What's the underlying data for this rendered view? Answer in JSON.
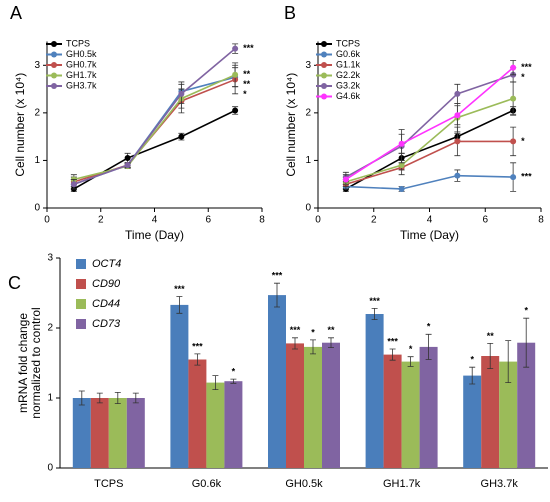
{
  "chart_data": [
    {
      "type": "line",
      "title": "A",
      "xlabel": "Time (Day)",
      "ylabel": "Cell number (x 10⁴)",
      "x": [
        1,
        3,
        5,
        7
      ],
      "xlim": [
        0,
        8
      ],
      "xticks": [
        0,
        2,
        4,
        6,
        8
      ],
      "ylim": [
        0,
        3.5
      ],
      "yticks": [
        0,
        1,
        2,
        3
      ],
      "series": [
        {
          "name": "TCPS",
          "color": "#000000",
          "values": [
            0.4,
            1.05,
            1.5,
            2.05
          ],
          "errors": [
            0.05,
            0.1,
            0.07,
            0.08
          ]
        },
        {
          "name": "GH0.5k",
          "color": "#4f81bd",
          "values": [
            0.5,
            0.9,
            2.45,
            2.75
          ],
          "errors": [
            0.1,
            0.05,
            0.2,
            0.2
          ],
          "annotation": "**"
        },
        {
          "name": "GH0.7k",
          "color": "#c0504d",
          "values": [
            0.55,
            0.9,
            2.25,
            2.7
          ],
          "errors": [
            0.1,
            0.05,
            0.25,
            0.3
          ],
          "annotation": "*"
        },
        {
          "name": "GH1.7k",
          "color": "#9bbb59",
          "values": [
            0.6,
            0.88,
            2.3,
            2.8
          ],
          "errors": [
            0.1,
            0.05,
            0.2,
            0.25
          ],
          "annotation": "**"
        },
        {
          "name": "GH3.7k",
          "color": "#8064a2",
          "values": [
            0.5,
            0.9,
            2.4,
            3.35
          ],
          "errors": [
            0.1,
            0.05,
            0.2,
            0.1
          ],
          "annotation": "***"
        }
      ]
    },
    {
      "type": "line",
      "title": "B",
      "xlabel": "Time (Day)",
      "ylabel": "Cell number (x 10⁴)",
      "x": [
        1,
        3,
        5,
        7
      ],
      "xlim": [
        0,
        8
      ],
      "xticks": [
        0,
        2,
        4,
        6,
        8
      ],
      "ylim": [
        0,
        3.5
      ],
      "yticks": [
        0,
        1,
        2,
        3
      ],
      "series": [
        {
          "name": "TCPS",
          "color": "#000000",
          "values": [
            0.4,
            1.05,
            1.5,
            2.05
          ],
          "errors": [
            0.05,
            0.1,
            0.07,
            0.08
          ]
        },
        {
          "name": "G0.6k",
          "color": "#4f81bd",
          "values": [
            0.45,
            0.4,
            0.68,
            0.65
          ],
          "errors": [
            0.05,
            0.05,
            0.12,
            0.3
          ],
          "annotation": "***"
        },
        {
          "name": "G1.1k",
          "color": "#c0504d",
          "values": [
            0.5,
            0.85,
            1.4,
            1.4
          ],
          "errors": [
            0.1,
            0.15,
            0.3,
            0.3
          ],
          "annotation": "*"
        },
        {
          "name": "G2.2k",
          "color": "#9bbb59",
          "values": [
            0.55,
            0.9,
            1.9,
            2.3
          ],
          "errors": [
            0.1,
            0.1,
            0.3,
            0.35
          ]
        },
        {
          "name": "G3.2k",
          "color": "#8064a2",
          "values": [
            0.65,
            1.3,
            2.4,
            2.8
          ],
          "errors": [
            0.1,
            0.35,
            0.2,
            0.15
          ],
          "annotation": "*"
        },
        {
          "name": "G4.6k",
          "color": "#ff33ff",
          "values": [
            0.6,
            1.35,
            1.95,
            2.95
          ],
          "errors": [
            0.1,
            0.2,
            0.2,
            0.15
          ],
          "annotation": "***"
        }
      ]
    },
    {
      "type": "bar",
      "title": "C",
      "ylabel": [
        "mRNA fold change",
        "normalized to control"
      ],
      "categories": [
        "TCPS",
        "G0.6k",
        "GH0.5k",
        "GH1.7k",
        "GH3.7k"
      ],
      "ylim": [
        0,
        3
      ],
      "yticks": [
        0,
        1,
        2,
        3
      ],
      "series": [
        {
          "name": "OCT4",
          "color": "#4a7ebb",
          "values": [
            1.0,
            2.33,
            2.47,
            2.2,
            1.32
          ],
          "errors": [
            0.1,
            0.12,
            0.17,
            0.08,
            0.12
          ],
          "labels": [
            null,
            "***",
            "***",
            "***",
            "*"
          ]
        },
        {
          "name": "CD90",
          "color": "#c0504d",
          "values": [
            1.0,
            1.55,
            1.78,
            1.62,
            1.6
          ],
          "errors": [
            0.07,
            0.08,
            0.08,
            0.08,
            0.18
          ],
          "labels": [
            null,
            "***",
            "***",
            "***",
            "**"
          ]
        },
        {
          "name": "CD44",
          "color": "#9bbb59",
          "values": [
            1.0,
            1.22,
            1.73,
            1.52,
            1.52
          ],
          "errors": [
            0.08,
            0.1,
            0.1,
            0.07,
            0.3
          ],
          "labels": [
            null,
            null,
            "*",
            "*",
            null
          ]
        },
        {
          "name": "CD73",
          "color": "#8064a2",
          "values": [
            1.0,
            1.24,
            1.79,
            1.73,
            1.79
          ],
          "errors": [
            0.07,
            0.03,
            0.07,
            0.18,
            0.35
          ],
          "labels": [
            null,
            "*",
            "**",
            "*",
            "*"
          ]
        }
      ]
    }
  ]
}
